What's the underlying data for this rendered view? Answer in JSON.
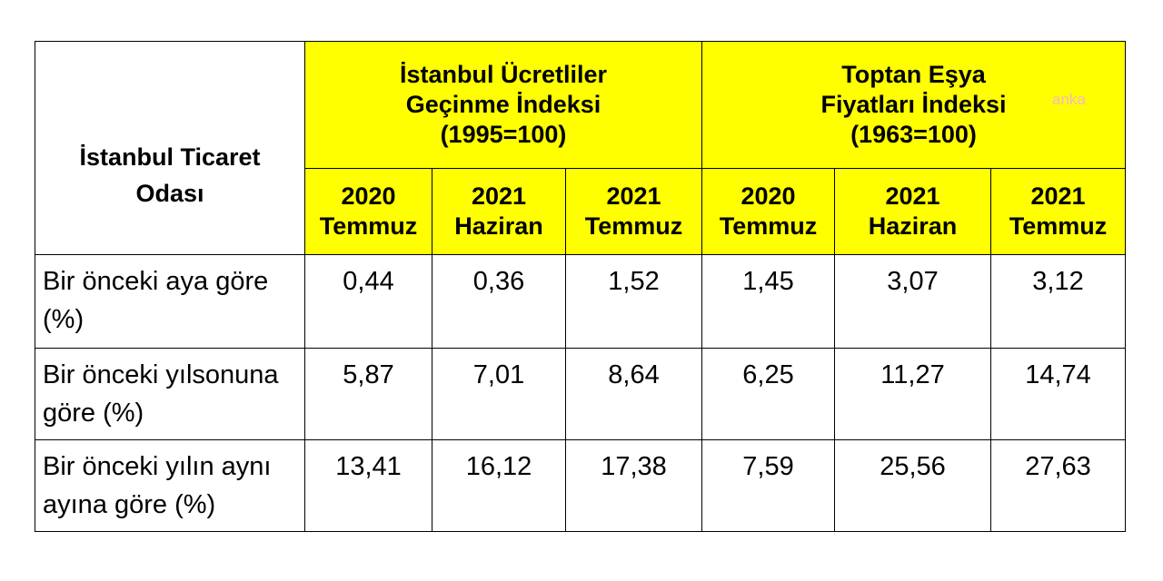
{
  "header": {
    "corner": [
      "İstanbul Ticaret",
      "Odası"
    ],
    "groups": [
      [
        "İstanbul Ücretliler",
        "Geçinme İndeksi",
        "(1995=100)"
      ],
      [
        "Toptan Eşya",
        "Fiyatları İndeksi",
        "(1963=100)"
      ]
    ],
    "columns": [
      [
        "2020",
        "Temmuz"
      ],
      [
        "2021",
        "Haziran"
      ],
      [
        "2021",
        "Temmuz"
      ],
      [
        "2020",
        "Temmuz"
      ],
      [
        "2021",
        "Haziran"
      ],
      [
        "2021",
        "Temmuz"
      ]
    ]
  },
  "table": {
    "rows": [
      {
        "label": [
          "Bir önceki aya göre",
          "(%)"
        ],
        "values": [
          "0,44",
          "0,36",
          "1,52",
          "1,45",
          "3,07",
          "3,12"
        ]
      },
      {
        "label": [
          "Bir önceki yılsonuna",
          "göre (%)"
        ],
        "values": [
          "5,87",
          "7,01",
          "8,64",
          "6,25",
          "11,27",
          "14,74"
        ]
      },
      {
        "label": [
          "Bir önceki yılın aynı",
          "ayına göre (%)"
        ],
        "values": [
          "13,41",
          "16,12",
          "17,38",
          "7,59",
          "25,56",
          "27,63"
        ]
      }
    ]
  },
  "watermark": "anka"
}
